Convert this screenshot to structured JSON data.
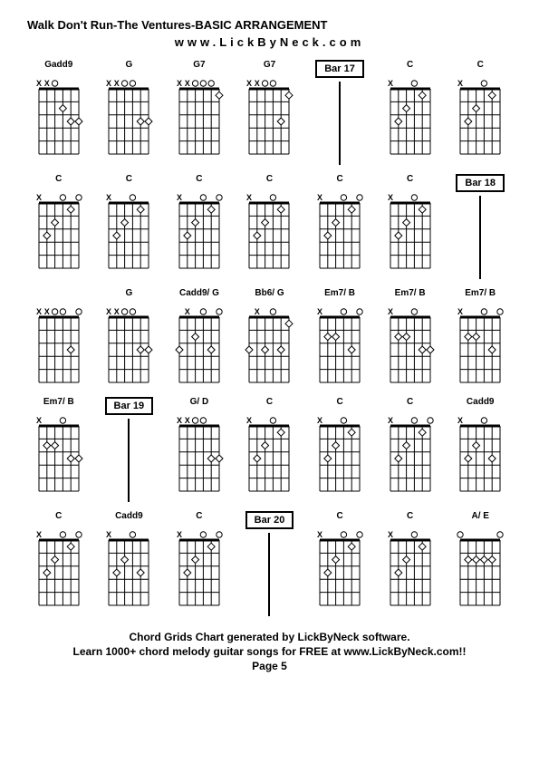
{
  "title": "Walk Don't Run-The Ventures-BASIC ARRANGEMENT",
  "subtitle": "www.LickByNeck.com",
  "footer": {
    "line1": "Chord Grids Chart generated by LickByNeck software.",
    "line2": "Learn 1000+ chord melody guitar songs for FREE at www.LickByNeck.com!!",
    "page": "Page 5"
  },
  "grid_cols": 7,
  "fretboard_strings": 6,
  "fretboard_frets": 5,
  "diagram_width": 58,
  "diagram_height": 92,
  "nut_thickness": 3,
  "line_color": "#000000",
  "marker_fill": "#ffffff",
  "marker_stroke": "#000000",
  "cells": [
    {
      "type": "chord",
      "label": "Gadd9",
      "top": [
        "x",
        "x",
        "o",
        "",
        "",
        ""
      ],
      "dots": [
        {
          "s": 4,
          "f": 2
        },
        {
          "s": 5,
          "f": 3
        },
        {
          "s": 6,
          "f": 3
        }
      ]
    },
    {
      "type": "chord",
      "label": "G",
      "top": [
        "x",
        "x",
        "o",
        "o",
        "",
        ""
      ],
      "dots": [
        {
          "s": 5,
          "f": 3
        },
        {
          "s": 6,
          "f": 3
        }
      ]
    },
    {
      "type": "chord",
      "label": "G7",
      "top": [
        "x",
        "x",
        "o",
        "o",
        "o",
        ""
      ],
      "dots": [
        {
          "s": 6,
          "f": 1
        }
      ]
    },
    {
      "type": "chord",
      "label": "G7",
      "top": [
        "x",
        "x",
        "o",
        "o",
        "",
        ""
      ],
      "dots": [
        {
          "s": 5,
          "f": 3
        },
        {
          "s": 6,
          "f": 1
        }
      ]
    },
    {
      "type": "bar",
      "label": "Bar 17"
    },
    {
      "type": "chord",
      "label": "C",
      "top": [
        "x",
        "",
        "",
        "o",
        "",
        ""
      ],
      "dots": [
        {
          "s": 2,
          "f": 3
        },
        {
          "s": 3,
          "f": 2
        },
        {
          "s": 5,
          "f": 1
        }
      ]
    },
    {
      "type": "chord",
      "label": "C",
      "top": [
        "x",
        "",
        "",
        "o",
        "",
        ""
      ],
      "dots": [
        {
          "s": 2,
          "f": 3
        },
        {
          "s": 3,
          "f": 2
        },
        {
          "s": 5,
          "f": 1
        }
      ]
    },
    {
      "type": "chord",
      "label": "C",
      "top": [
        "x",
        "",
        "",
        "o",
        "",
        "o"
      ],
      "dots": [
        {
          "s": 2,
          "f": 3
        },
        {
          "s": 3,
          "f": 2
        },
        {
          "s": 5,
          "f": 1
        }
      ]
    },
    {
      "type": "chord",
      "label": "C",
      "top": [
        "x",
        "",
        "",
        "o",
        "",
        ""
      ],
      "dots": [
        {
          "s": 2,
          "f": 3
        },
        {
          "s": 3,
          "f": 2
        },
        {
          "s": 5,
          "f": 1
        }
      ]
    },
    {
      "type": "chord",
      "label": "C",
      "top": [
        "x",
        "",
        "",
        "o",
        "",
        "o"
      ],
      "dots": [
        {
          "s": 2,
          "f": 3
        },
        {
          "s": 3,
          "f": 2
        },
        {
          "s": 5,
          "f": 1
        }
      ]
    },
    {
      "type": "chord",
      "label": "C",
      "top": [
        "x",
        "",
        "",
        "o",
        "",
        ""
      ],
      "dots": [
        {
          "s": 2,
          "f": 3
        },
        {
          "s": 3,
          "f": 2
        },
        {
          "s": 5,
          "f": 1
        }
      ]
    },
    {
      "type": "chord",
      "label": "C",
      "top": [
        "x",
        "",
        "",
        "o",
        "",
        "o"
      ],
      "dots": [
        {
          "s": 2,
          "f": 3
        },
        {
          "s": 3,
          "f": 2
        },
        {
          "s": 5,
          "f": 1
        }
      ]
    },
    {
      "type": "chord",
      "label": "C",
      "top": [
        "x",
        "",
        "",
        "o",
        "",
        ""
      ],
      "dots": [
        {
          "s": 2,
          "f": 3
        },
        {
          "s": 3,
          "f": 2
        },
        {
          "s": 5,
          "f": 1
        }
      ]
    },
    {
      "type": "bar",
      "label": "Bar 18"
    },
    {
      "type": "chord",
      "label": "",
      "top": [
        "x",
        "x",
        "o",
        "o",
        "",
        "o"
      ],
      "dots": [
        {
          "s": 5,
          "f": 3
        }
      ]
    },
    {
      "type": "chord",
      "label": "G",
      "top": [
        "x",
        "x",
        "o",
        "o",
        "",
        ""
      ],
      "dots": [
        {
          "s": 5,
          "f": 3
        },
        {
          "s": 6,
          "f": 3
        }
      ]
    },
    {
      "type": "chord",
      "label": "Cadd9/ G",
      "top": [
        "",
        "x",
        "",
        "o",
        "",
        "o"
      ],
      "dots": [
        {
          "s": 1,
          "f": 3
        },
        {
          "s": 3,
          "f": 2
        },
        {
          "s": 5,
          "f": 3
        }
      ]
    },
    {
      "type": "chord",
      "label": "Bb6/ G",
      "top": [
        "",
        "x",
        "",
        "o",
        "",
        ""
      ],
      "dots": [
        {
          "s": 1,
          "f": 3
        },
        {
          "s": 3,
          "f": 3
        },
        {
          "s": 5,
          "f": 3
        },
        {
          "s": 6,
          "f": 1
        }
      ]
    },
    {
      "type": "chord",
      "label": "Em7/ B",
      "top": [
        "x",
        "",
        "",
        "o",
        "",
        "o"
      ],
      "dots": [
        {
          "s": 2,
          "f": 2
        },
        {
          "s": 3,
          "f": 2
        },
        {
          "s": 5,
          "f": 3
        }
      ]
    },
    {
      "type": "chord",
      "label": "Em7/ B",
      "top": [
        "x",
        "",
        "",
        "o",
        "",
        ""
      ],
      "dots": [
        {
          "s": 2,
          "f": 2
        },
        {
          "s": 3,
          "f": 2
        },
        {
          "s": 5,
          "f": 3
        },
        {
          "s": 6,
          "f": 3
        }
      ]
    },
    {
      "type": "chord",
      "label": "Em7/ B",
      "top": [
        "x",
        "",
        "",
        "o",
        "",
        "o"
      ],
      "dots": [
        {
          "s": 2,
          "f": 2
        },
        {
          "s": 3,
          "f": 2
        },
        {
          "s": 5,
          "f": 3
        }
      ]
    },
    {
      "type": "chord",
      "label": "Em7/ B",
      "top": [
        "x",
        "",
        "",
        "o",
        "",
        ""
      ],
      "dots": [
        {
          "s": 2,
          "f": 2
        },
        {
          "s": 3,
          "f": 2
        },
        {
          "s": 5,
          "f": 3
        },
        {
          "s": 6,
          "f": 3
        }
      ]
    },
    {
      "type": "bar",
      "label": "Bar 19"
    },
    {
      "type": "chord",
      "label": "G/ D",
      "top": [
        "x",
        "x",
        "o",
        "o",
        "",
        ""
      ],
      "dots": [
        {
          "s": 5,
          "f": 3
        },
        {
          "s": 6,
          "f": 3
        }
      ]
    },
    {
      "type": "chord",
      "label": "C",
      "top": [
        "x",
        "",
        "",
        "o",
        "",
        ""
      ],
      "dots": [
        {
          "s": 2,
          "f": 3
        },
        {
          "s": 3,
          "f": 2
        },
        {
          "s": 5,
          "f": 1
        }
      ]
    },
    {
      "type": "chord",
      "label": "C",
      "top": [
        "x",
        "",
        "",
        "o",
        "",
        ""
      ],
      "dots": [
        {
          "s": 2,
          "f": 3
        },
        {
          "s": 3,
          "f": 2
        },
        {
          "s": 5,
          "f": 1
        }
      ]
    },
    {
      "type": "chord",
      "label": "C",
      "top": [
        "x",
        "",
        "",
        "o",
        "",
        "o"
      ],
      "dots": [
        {
          "s": 2,
          "f": 3
        },
        {
          "s": 3,
          "f": 2
        },
        {
          "s": 5,
          "f": 1
        }
      ]
    },
    {
      "type": "chord",
      "label": "Cadd9",
      "top": [
        "x",
        "",
        "",
        "o",
        "",
        ""
      ],
      "dots": [
        {
          "s": 2,
          "f": 3
        },
        {
          "s": 3,
          "f": 2
        },
        {
          "s": 5,
          "f": 3
        }
      ]
    },
    {
      "type": "chord",
      "label": "C",
      "top": [
        "x",
        "",
        "",
        "o",
        "",
        "o"
      ],
      "dots": [
        {
          "s": 2,
          "f": 3
        },
        {
          "s": 3,
          "f": 2
        },
        {
          "s": 5,
          "f": 1
        }
      ]
    },
    {
      "type": "chord",
      "label": "Cadd9",
      "top": [
        "x",
        "",
        "",
        "o",
        "",
        ""
      ],
      "dots": [
        {
          "s": 2,
          "f": 3
        },
        {
          "s": 3,
          "f": 2
        },
        {
          "s": 5,
          "f": 3
        }
      ]
    },
    {
      "type": "chord",
      "label": "C",
      "top": [
        "x",
        "",
        "",
        "o",
        "",
        "o"
      ],
      "dots": [
        {
          "s": 2,
          "f": 3
        },
        {
          "s": 3,
          "f": 2
        },
        {
          "s": 5,
          "f": 1
        }
      ]
    },
    {
      "type": "bar",
      "label": "Bar 20"
    },
    {
      "type": "chord",
      "label": "C",
      "top": [
        "x",
        "",
        "",
        "o",
        "",
        "o"
      ],
      "dots": [
        {
          "s": 2,
          "f": 3
        },
        {
          "s": 3,
          "f": 2
        },
        {
          "s": 5,
          "f": 1
        }
      ]
    },
    {
      "type": "chord",
      "label": "C",
      "top": [
        "x",
        "",
        "",
        "o",
        "",
        ""
      ],
      "dots": [
        {
          "s": 2,
          "f": 3
        },
        {
          "s": 3,
          "f": 2
        },
        {
          "s": 5,
          "f": 1
        }
      ]
    },
    {
      "type": "chord",
      "label": "A/ E",
      "top": [
        "o",
        "",
        "",
        "",
        "",
        "o"
      ],
      "dots": [
        {
          "s": 2,
          "f": 2
        },
        {
          "s": 3,
          "f": 2
        },
        {
          "s": 4,
          "f": 2
        },
        {
          "s": 5,
          "f": 2
        }
      ]
    }
  ]
}
